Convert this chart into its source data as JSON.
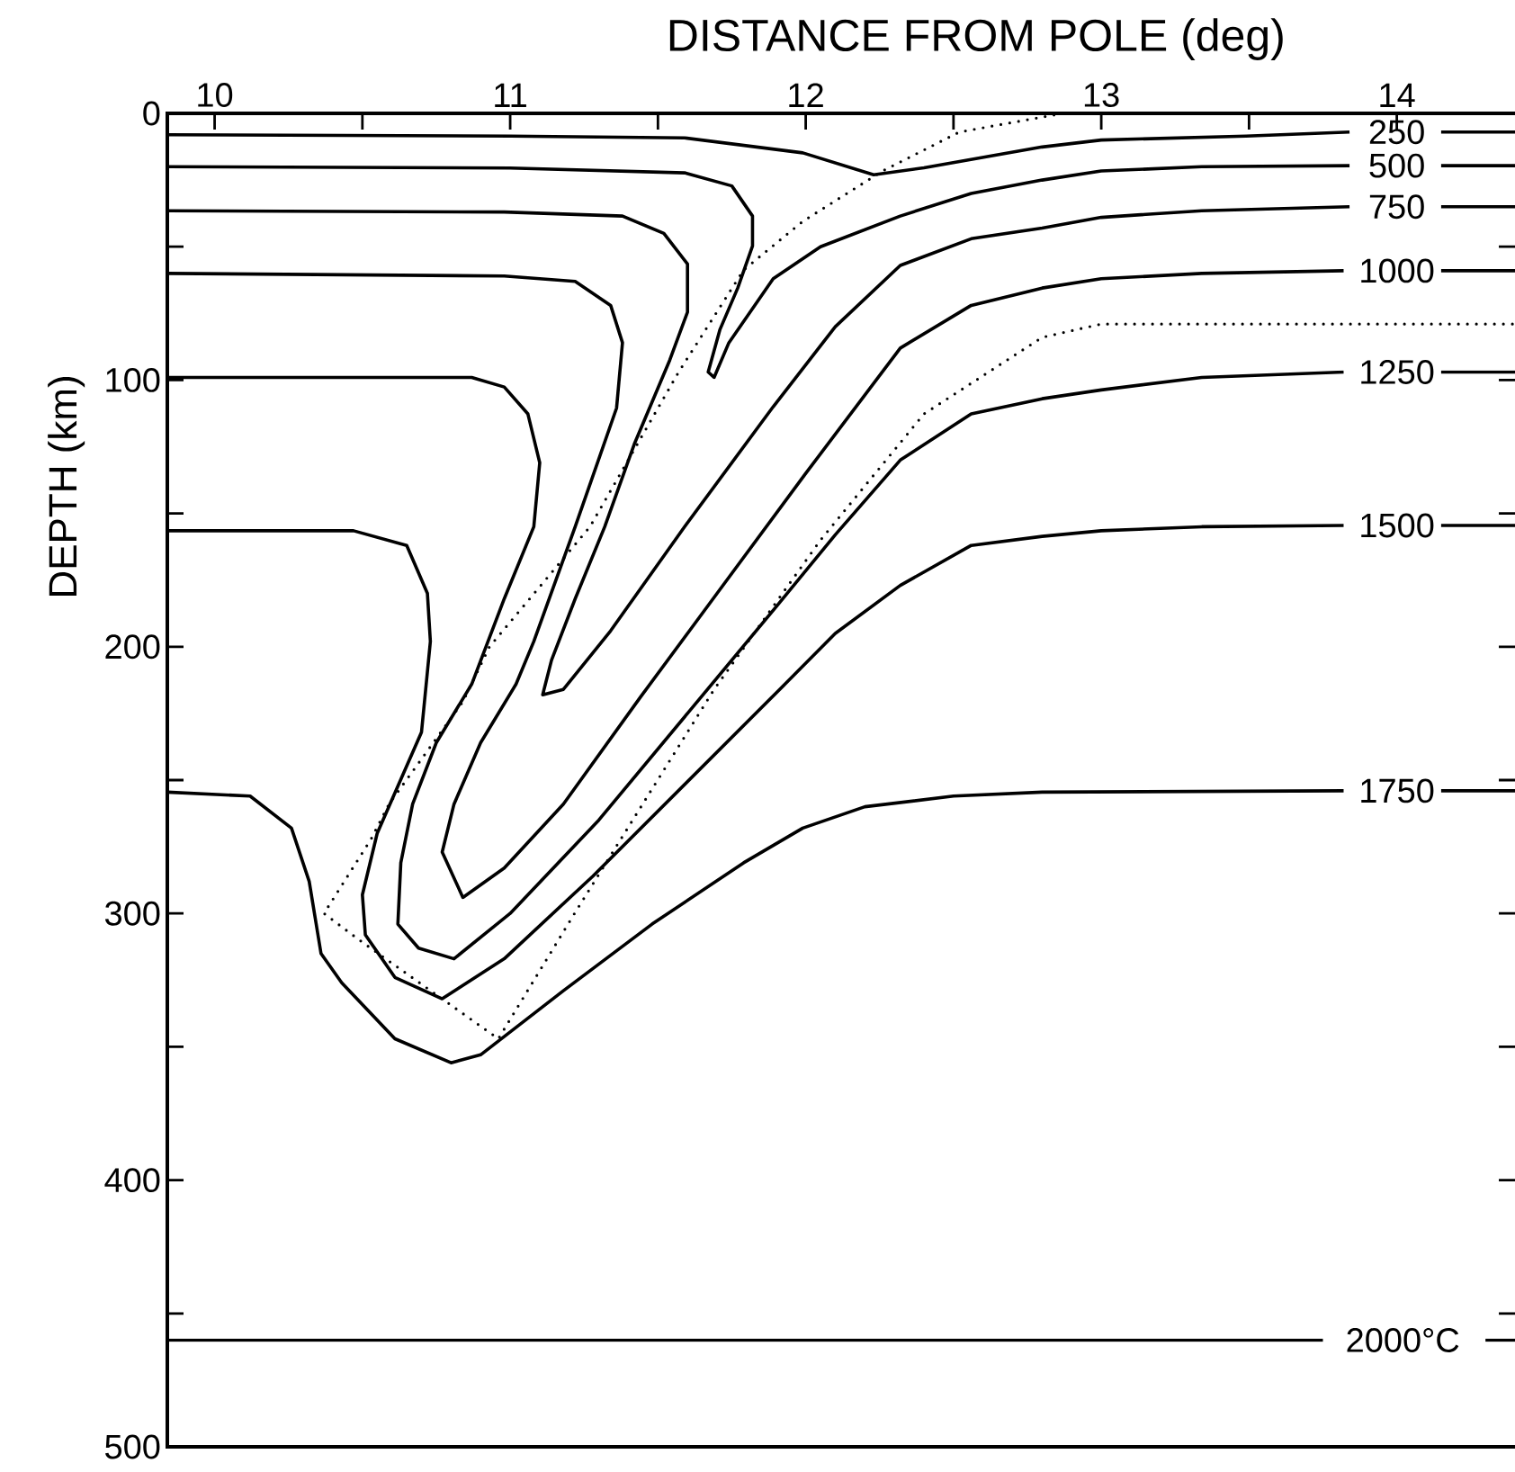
{
  "chart_data": {
    "type": "line",
    "xlabel": "DISTANCE FROM POLE (deg)",
    "ylabel": "DEPTH (km)",
    "xlim": [
      9.84,
      14.4
    ],
    "ylim": [
      500,
      0
    ],
    "xticks": [
      10,
      {
        "value": 10.5,
        "label": null
      },
      11,
      {
        "value": 11.5,
        "label": null
      },
      12,
      {
        "value": 12.5,
        "label": null
      },
      13,
      {
        "value": 13.5,
        "label": null
      },
      14
    ],
    "yticks": [
      0,
      {
        "value": 50,
        "label": null
      },
      100,
      {
        "value": 150,
        "label": null
      },
      200,
      {
        "value": 250,
        "label": null
      },
      300,
      {
        "value": 350,
        "label": null
      },
      400,
      {
        "value": 450,
        "label": null
      },
      500
    ],
    "marker": "none",
    "line_style": "solid",
    "legend": "right",
    "series": [
      {
        "name": "250",
        "color": "#000000",
        "x": [
          9.84,
          11.0,
          11.59,
          11.99,
          12.23,
          12.4,
          12.8,
          13.0,
          13.49,
          13.84,
          14.0,
          14.15,
          14.4
        ],
        "values": [
          8,
          8.5,
          9.2,
          14.8,
          23,
          20.4,
          12.6,
          10,
          8.5,
          7,
          null,
          7,
          7
        ]
      },
      {
        "name": "500",
        "color": "#000000",
        "x": [
          9.84,
          11.0,
          11.59,
          11.75,
          11.82,
          11.82,
          11.77,
          11.71,
          11.67,
          11.69,
          11.74,
          11.89,
          12.05,
          12.32,
          12.56,
          12.8,
          13.0,
          13.34,
          13.84,
          14.0,
          14.15,
          14.4
        ],
        "values": [
          20,
          20.5,
          22.3,
          27.2,
          38.5,
          49.7,
          65.5,
          81,
          97,
          99,
          86,
          62,
          50,
          38.5,
          30,
          25,
          21.6,
          20,
          19.6,
          null,
          19.6,
          19.6
        ]
      },
      {
        "name": "750",
        "color": "#000000",
        "x": [
          9.84,
          10.98,
          11.38,
          11.52,
          11.6,
          11.6,
          11.54,
          11.42,
          11.32,
          11.22,
          11.14,
          11.11,
          11.18,
          11.34,
          11.59,
          11.89,
          12.1,
          12.32,
          12.56,
          12.8,
          13.0,
          13.34,
          13.84,
          14.0,
          14.15,
          14.4
        ],
        "values": [
          36.5,
          37,
          38.5,
          45,
          56.5,
          74.5,
          92.5,
          124,
          155,
          182,
          205,
          218,
          216,
          194,
          155,
          110,
          80,
          57,
          47,
          43,
          39,
          36.5,
          35,
          null,
          35,
          35
        ]
      },
      {
        "name": "1000",
        "color": "#000000",
        "x": [
          9.84,
          10.98,
          11.22,
          11.34,
          11.38,
          11.36,
          11.22,
          11.08,
          11.02,
          10.9,
          10.81,
          10.77,
          10.84,
          10.98,
          11.18,
          11.44,
          11.7,
          12.0,
          12.32,
          12.56,
          12.8,
          13.0,
          13.34,
          13.82,
          14.0,
          14.15,
          14.4
        ],
        "values": [
          60,
          61,
          63,
          72,
          86,
          110.5,
          155,
          198,
          214,
          236,
          259,
          277,
          294,
          283,
          259,
          219,
          180,
          135,
          88,
          72,
          65.5,
          62,
          60,
          59,
          null,
          59,
          59
        ]
      },
      {
        "name": "1250",
        "color": "#000000",
        "x": [
          9.84,
          10.87,
          10.98,
          11.06,
          11.1,
          11.08,
          10.98,
          10.87,
          10.75,
          10.67,
          10.63,
          10.62,
          10.69,
          10.81,
          11.0,
          11.3,
          11.6,
          11.9,
          12.1,
          12.32,
          12.56,
          12.8,
          13.0,
          13.34,
          13.82,
          14.0,
          14.15,
          14.4
        ],
        "values": [
          99,
          99,
          102.6,
          112.7,
          131,
          155,
          182,
          214,
          236,
          259,
          281,
          304,
          313,
          317,
          300,
          265,
          225,
          185,
          158,
          130,
          112.7,
          107,
          103.7,
          99,
          97,
          null,
          97,
          97
        ]
      },
      {
        "name": "1500",
        "color": "#000000",
        "x": [
          9.84,
          10.47,
          10.65,
          10.72,
          10.73,
          10.7,
          10.55,
          10.5,
          10.51,
          10.61,
          10.77,
          10.98,
          11.28,
          11.93,
          12.1,
          12.32,
          12.56,
          12.8,
          13.0,
          13.34,
          13.82,
          14.0,
          14.15,
          14.4
        ],
        "values": [
          156.5,
          156.5,
          162,
          180,
          198,
          232,
          270,
          293,
          308,
          324,
          332,
          317,
          286,
          214,
          195,
          177,
          162,
          158.6,
          156.5,
          155,
          154.5,
          null,
          154.5,
          154.5
        ]
      },
      {
        "name": "1750",
        "color": "#000000",
        "x": [
          9.84,
          10.12,
          10.26,
          10.32,
          10.36,
          10.43,
          10.61,
          10.8,
          10.9,
          11.18,
          11.48,
          11.79,
          11.99,
          12.2,
          12.5,
          12.8,
          13.82,
          14.0,
          14.15,
          14.4
        ],
        "values": [
          254.5,
          256,
          268,
          288,
          315,
          326,
          347,
          356,
          353,
          329,
          304,
          281,
          268,
          260,
          256,
          254.5,
          254,
          null,
          254,
          254
        ]
      },
      {
        "name": "2000°C",
        "color": "#000000",
        "x": [
          9.84,
          13.75,
          14.02,
          14.3,
          14.4
        ],
        "values": [
          460,
          460,
          null,
          460,
          460
        ]
      },
      {
        "color": "#000000",
        "line_style": "dotted",
        "x": [
          12.87,
          12.52,
          12.26,
          11.99,
          11.79,
          11.57,
          11.27,
          10.93,
          10.84,
          10.59,
          10.53,
          10.37,
          10.49,
          10.96,
          11.22,
          11.69,
          12.05,
          12.4,
          12.8,
          13.0,
          14.4
        ],
        "values": [
          0,
          7,
          21.6,
          40.5,
          58.7,
          97,
          155,
          200,
          220.6,
          259,
          272,
          300,
          310,
          347,
          299.6,
          216,
          160,
          112.7,
          84,
          79,
          79
        ]
      }
    ]
  }
}
